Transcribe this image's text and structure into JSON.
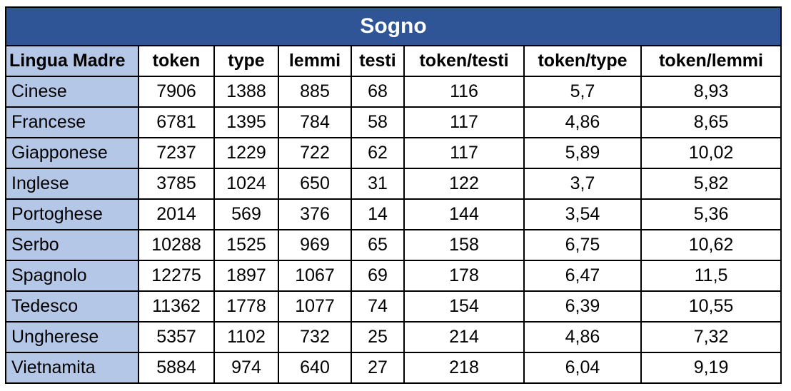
{
  "title": "Sogno",
  "columns": [
    "Lingua Madre",
    "token",
    "type",
    "lemmi",
    "testi",
    "token/testi",
    "token/type",
    "token/lemmi"
  ],
  "rows": [
    [
      "Cinese",
      "7906",
      "1388",
      "885",
      "68",
      "116",
      "5,7",
      "8,93"
    ],
    [
      "Francese",
      "6781",
      "1395",
      "784",
      "58",
      "117",
      "4,86",
      "8,65"
    ],
    [
      "Giapponese",
      "7237",
      "1229",
      "722",
      "62",
      "117",
      "5,89",
      "10,02"
    ],
    [
      "Inglese",
      "3785",
      "1024",
      "650",
      "31",
      "122",
      "3,7",
      "5,82"
    ],
    [
      "Portoghese",
      "2014",
      "569",
      "376",
      "14",
      "144",
      "3,54",
      "5,36"
    ],
    [
      "Serbo",
      "10288",
      "1525",
      "969",
      "65",
      "158",
      "6,75",
      "10,62"
    ],
    [
      "Spagnolo",
      "12275",
      "1897",
      "1067",
      "69",
      "178",
      "6,47",
      "11,5"
    ],
    [
      "Tedesco",
      "11362",
      "1778",
      "1077",
      "74",
      "154",
      "6,39",
      "10,55"
    ],
    [
      "Ungherese",
      "5357",
      "1102",
      "732",
      "25",
      "214",
      "4,86",
      "7,32"
    ],
    [
      "Vietnamita",
      "5884",
      "974",
      "640",
      "27",
      "218",
      "6,04",
      "9,19"
    ]
  ],
  "colors": {
    "title_bg": "#2f5597",
    "title_text": "#ffffff",
    "first_col_bg": "#b4c7e7"
  }
}
